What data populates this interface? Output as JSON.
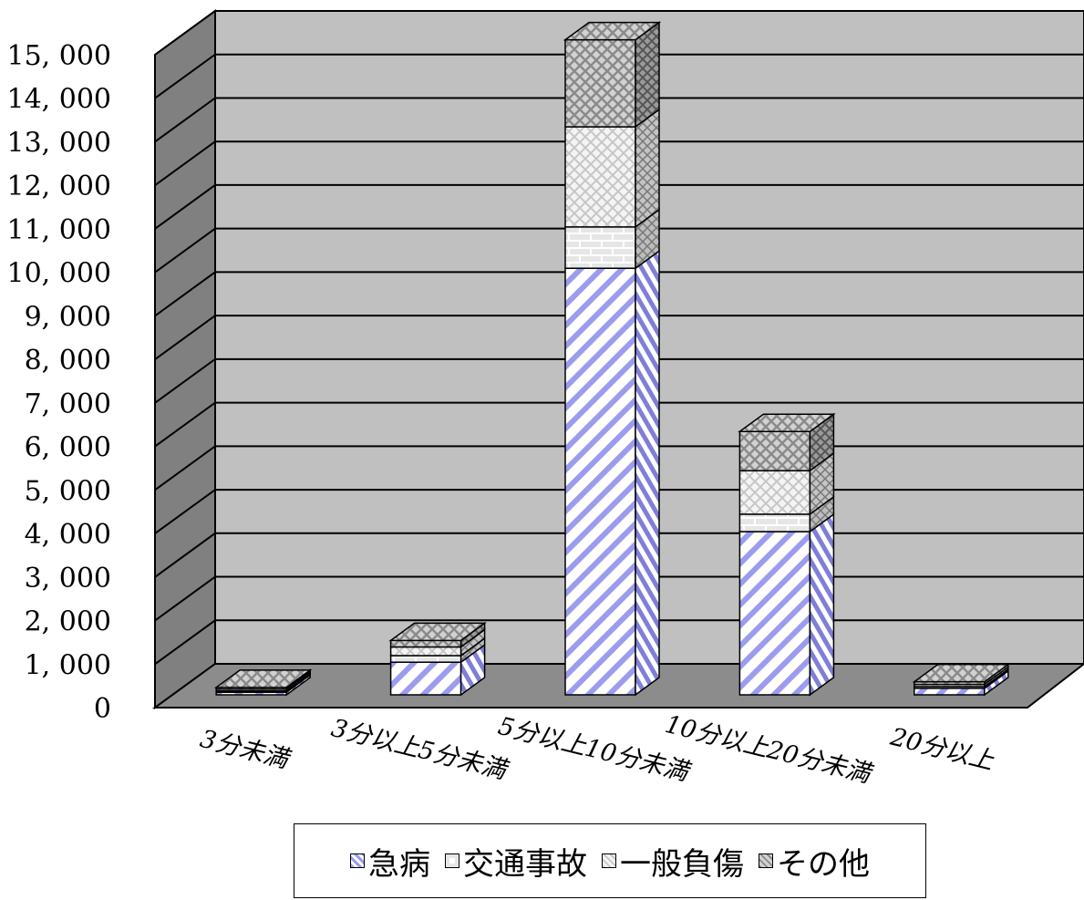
{
  "chart_data": {
    "type": "bar",
    "stacked": true,
    "three_d": true,
    "categories": [
      "3分未満",
      "3分以上5分未満",
      "5分以上10分未満",
      "10分以上20分未満",
      "20分以上"
    ],
    "series": [
      {
        "name": "急病",
        "values": [
          60,
          750,
          9800,
          3750,
          150
        ]
      },
      {
        "name": "交通事故",
        "values": [
          30,
          150,
          950,
          400,
          40
        ]
      },
      {
        "name": "一般負傷",
        "values": [
          40,
          200,
          2300,
          1000,
          50
        ]
      },
      {
        "name": "その他",
        "values": [
          40,
          150,
          2000,
          900,
          60
        ]
      }
    ],
    "y_ticks": [
      "0",
      "1, 000",
      "2, 000",
      "3, 000",
      "4, 000",
      "5, 000",
      "6, 000",
      "7, 000",
      "8, 000",
      "9, 000",
      "10, 000",
      "11, 000",
      "12, 000",
      "13, 000",
      "14, 000",
      "15, 000"
    ],
    "ylim": [
      0,
      15000
    ],
    "grid": true,
    "legend_position": "bottom",
    "colors": {
      "急病": "#b8b8f0",
      "交通事故": "#f0f0f0",
      "一般負傷": "#d9d9d9",
      "その他": "#a6a6a6",
      "back_wall": "#c0c0c0",
      "side_wall": "#808080",
      "floor": "#8c8c8c"
    }
  },
  "legend": {
    "items": [
      {
        "label": "急病",
        "icon": "swatch-blue-diagonal"
      },
      {
        "label": "交通事故",
        "icon": "swatch-brick"
      },
      {
        "label": "一般負傷",
        "icon": "swatch-light-check"
      },
      {
        "label": "その他",
        "icon": "swatch-dark-check"
      }
    ]
  }
}
